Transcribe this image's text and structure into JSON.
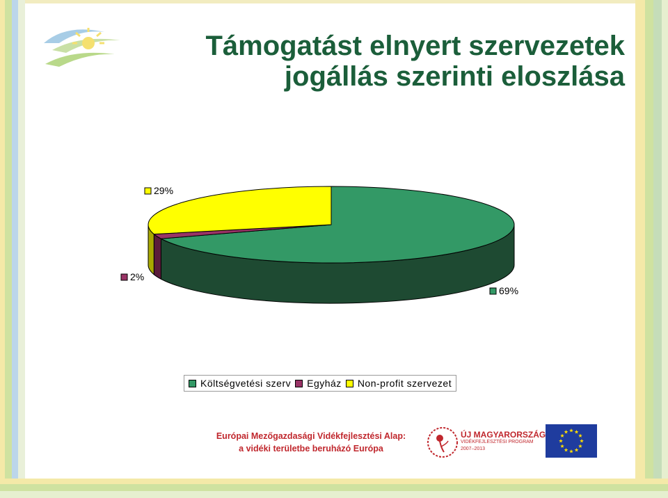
{
  "title": {
    "line1": "Támogatást elnyert szervezetek",
    "line2": "jogállás szerinti eloszlása"
  },
  "chart_data": {
    "type": "pie",
    "categories": [
      "Költségvetési szerv",
      "Egyház",
      "Non-profit szervezet"
    ],
    "values": [
      69,
      2,
      29
    ],
    "unit": "%",
    "data_labels": [
      "69%",
      "2%",
      "29%"
    ],
    "colors": [
      "#339966",
      "#993366",
      "#ffff00"
    ],
    "legend_position": "bottom",
    "style": "3d"
  },
  "legend": {
    "items": [
      {
        "label": "Költségvetési szerv",
        "color": "#339966"
      },
      {
        "label": "Egyház",
        "color": "#993366"
      },
      {
        "label": "Non-profit szervezet",
        "color": "#ffff00"
      }
    ]
  },
  "footer": {
    "line1": "Európai Mezőgazdasági Vidékfejlesztési Alap:",
    "line2": "a vidéki területbe beruházó Európa",
    "program_title": "ÚJ MAGYARORSZÁG",
    "program_sub": "VIDÉKFEJLESZTÉSI PROGRAM",
    "program_years": "2007–2013"
  },
  "icons": {
    "top_logo": "sun-logo-icon",
    "program_logo": "flower-logo-icon",
    "eu_flag": "eu-flag-icon"
  },
  "colors": {
    "title": "#1b5e3a",
    "footer_text": "#c0272d",
    "eu_blue": "#1f3c9e",
    "eu_star": "#ffdd00"
  }
}
